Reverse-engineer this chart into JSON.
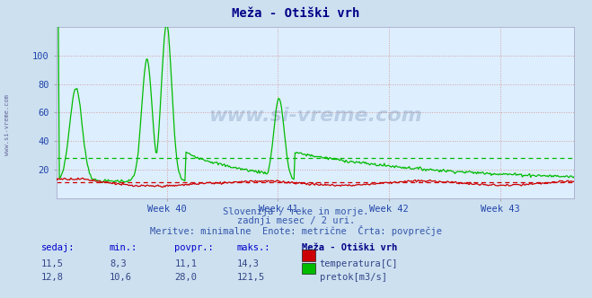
{
  "title": "Meža - Otiški vrh",
  "background_color": "#cce0f0",
  "plot_bg_color": "#ddeeff",
  "temp_color": "#cc0000",
  "flow_color": "#00bb00",
  "avg_temp_color": "#cc0000",
  "avg_flow_color": "#00bb00",
  "avg_temp_value": 11.1,
  "avg_flow_value": 28.0,
  "watermark_text": "www.si-vreme.com",
  "subtitle1": "Slovenija / reke in morje.",
  "subtitle2": "zadnji mesec / 2 uri.",
  "subtitle3": "Meritve: minimalne  Enote: metrične  Črta: povprečje",
  "table_header": [
    "sedaj:",
    "min.:",
    "povpr.:",
    "maks.:",
    "Meža - Otiški vrh"
  ],
  "table_row1": [
    "11,5",
    "8,3",
    "11,1",
    "14,3"
  ],
  "table_row2": [
    "12,8",
    "10,6",
    "28,0",
    "121,5"
  ],
  "label_temp": "temperatura[C]",
  "label_flow": "pretok[m3/s]",
  "x_tick_labels": [
    "Week 40",
    "Week 41",
    "Week 42",
    "Week 43"
  ],
  "yticks": [
    20,
    40,
    60,
    80,
    100
  ],
  "ylim": [
    0,
    120
  ],
  "n_points": 500
}
